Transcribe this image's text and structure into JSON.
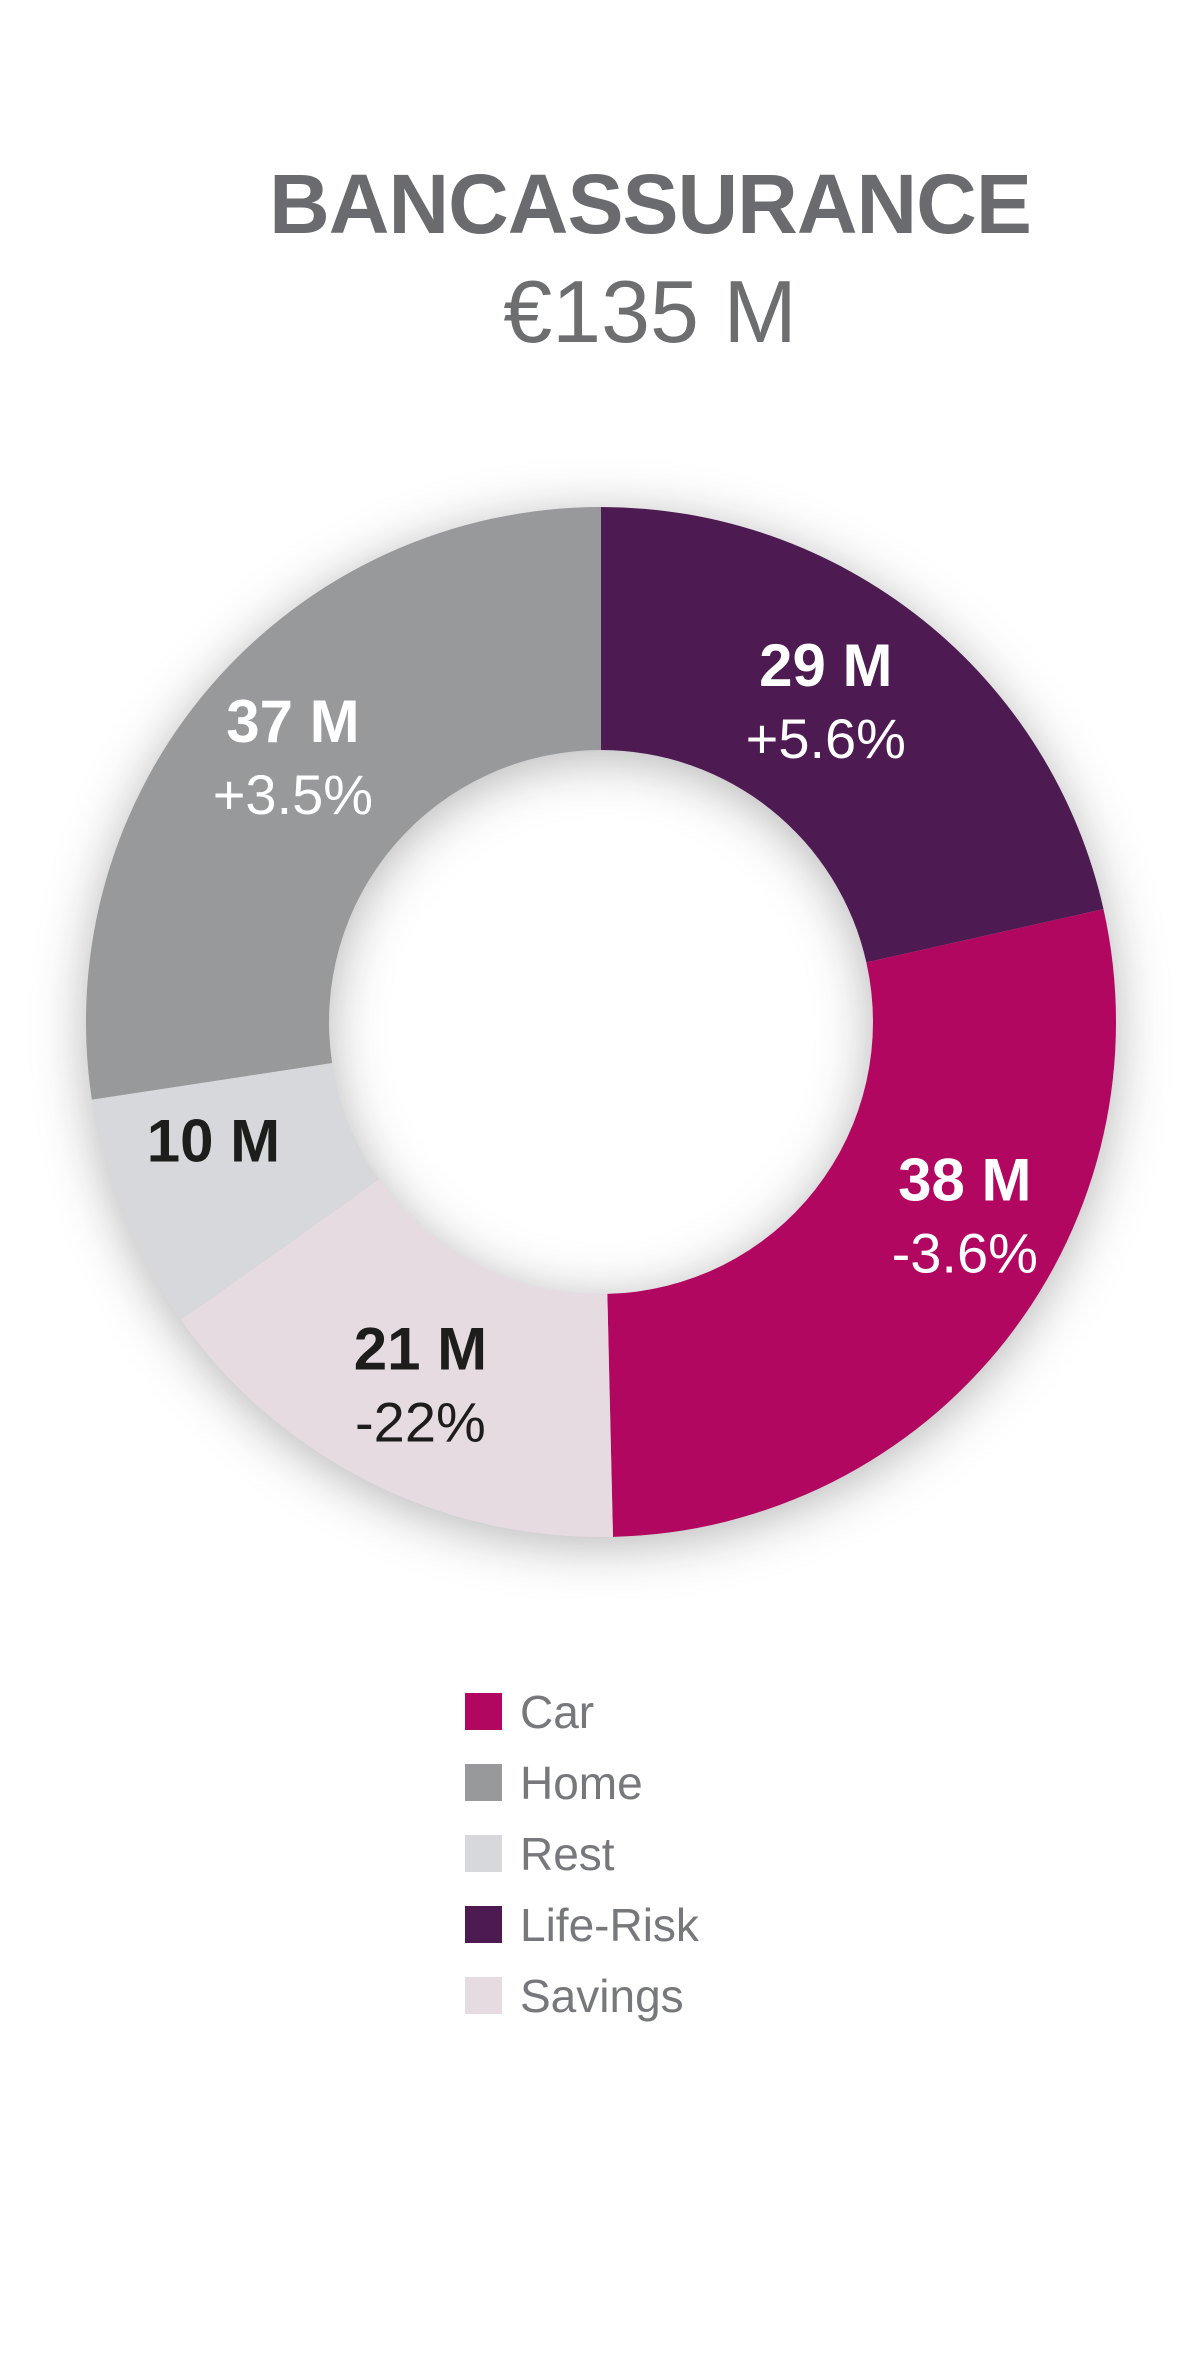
{
  "header": {
    "title": "BANCASSURANCE",
    "subtitle": "€135 M"
  },
  "chart_data": {
    "type": "pie",
    "variant": "donut",
    "title": "BANCASSURANCE",
    "total_label": "€135 M",
    "total_value_m": 135,
    "units": "€M",
    "start_angle_deg": 0,
    "direction": "clockwise",
    "segments": [
      {
        "label": "Life-Risk",
        "value_m": 29,
        "value_label": "29 M",
        "change_label": "+5.6%",
        "color": "#4d1a52",
        "text_color": "#ffffff"
      },
      {
        "label": "Car",
        "value_m": 38,
        "value_label": "38 M",
        "change_label": "-3.6%",
        "color": "#b20760",
        "text_color": "#ffffff"
      },
      {
        "label": "Savings",
        "value_m": 21,
        "value_label": "21 M",
        "change_label": "-22%",
        "color": "#e7dbe2",
        "text_color": "#1d1d1b"
      },
      {
        "label": "Rest",
        "value_m": 10,
        "value_label": "10 M",
        "change_label": "",
        "color": "#d7d8db",
        "text_color": "#1d1d1b"
      },
      {
        "label": "Home",
        "value_m": 37,
        "value_label": "37 M",
        "change_label": "+3.5%",
        "color": "#98999b",
        "text_color": "#ffffff"
      }
    ],
    "legend": [
      {
        "label": "Car",
        "color": "#b20760"
      },
      {
        "label": "Home",
        "color": "#98999b"
      },
      {
        "label": "Rest",
        "color": "#d7d8db"
      },
      {
        "label": "Life-Risk",
        "color": "#4d1a52"
      },
      {
        "label": "Savings",
        "color": "#e7dbe2"
      }
    ]
  }
}
